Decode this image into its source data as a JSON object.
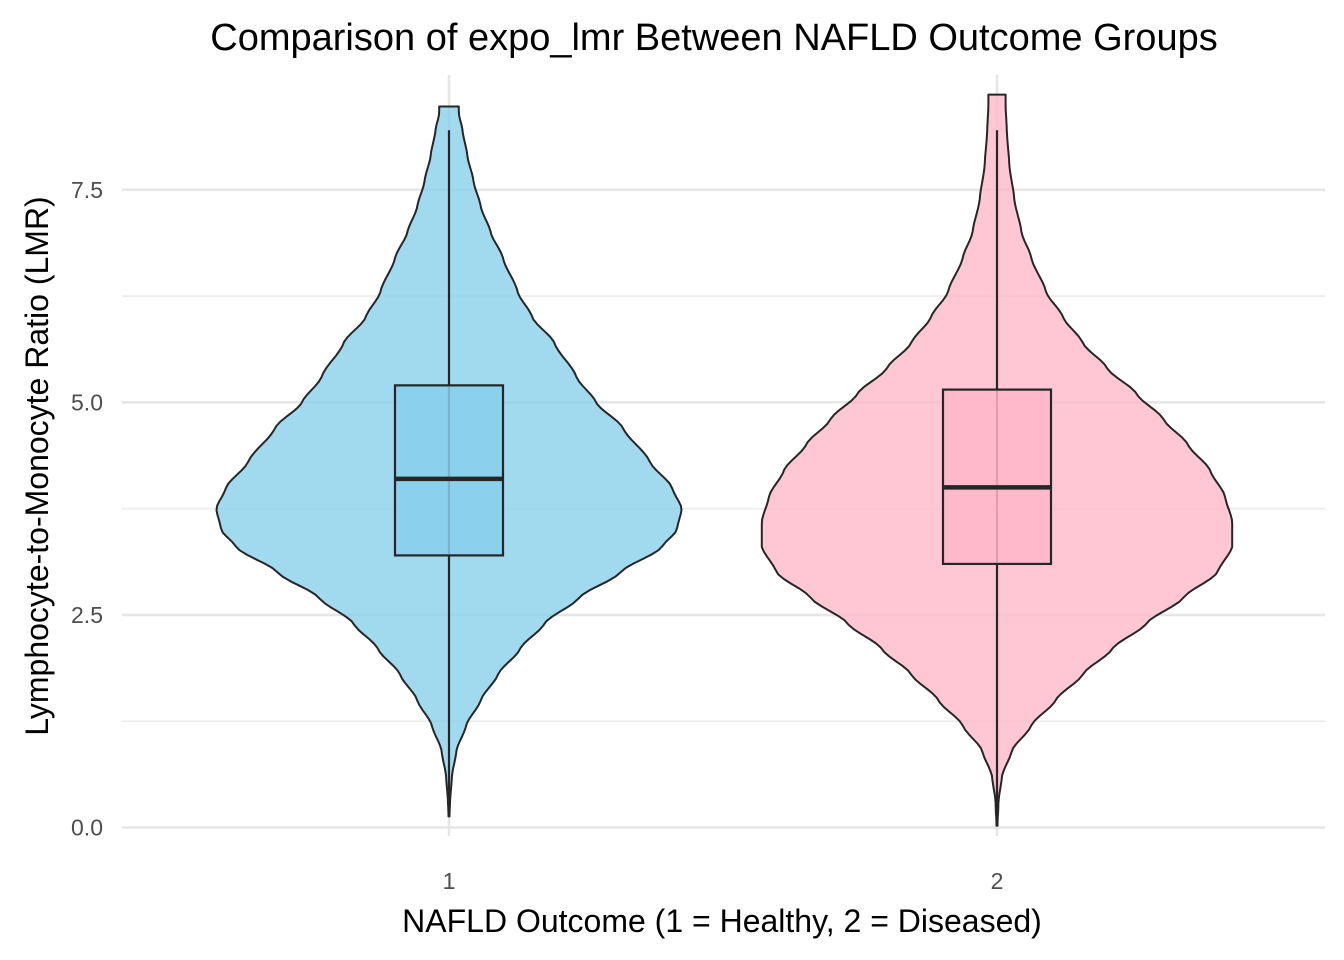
{
  "chart_data": {
    "type": "violin",
    "title": "Comparison of expo_lmr Between NAFLD Outcome Groups",
    "xlabel": "NAFLD Outcome (1 = Healthy, 2 = Diseased)",
    "ylabel": "Lymphocyte-to-Monocyte Ratio (LMR)",
    "categories": [
      "1",
      "2"
    ],
    "ylim": [
      -0.1,
      8.85
    ],
    "yticks": [
      "0.0",
      "2.5",
      "5.0",
      "7.5"
    ],
    "ytick_values": [
      0.0,
      2.5,
      5.0,
      7.5
    ],
    "grid": true,
    "series": [
      {
        "category": "1",
        "color": "#87CEEB",
        "box": {
          "q1": 3.2,
          "median": 4.1,
          "q3": 5.2,
          "whisker_low": 0.15,
          "whisker_high": 8.2
        },
        "y_range": [
          0.13,
          8.48
        ],
        "density_profile": [
          [
            0.13,
            0.002
          ],
          [
            0.3,
            0.004
          ],
          [
            0.6,
            0.012
          ],
          [
            0.9,
            0.03
          ],
          [
            1.2,
            0.07
          ],
          [
            1.5,
            0.13
          ],
          [
            1.8,
            0.2
          ],
          [
            2.1,
            0.29
          ],
          [
            2.4,
            0.39
          ],
          [
            2.7,
            0.53
          ],
          [
            3.0,
            0.7
          ],
          [
            3.3,
            0.87
          ],
          [
            3.5,
            0.93
          ],
          [
            3.75,
            0.95
          ],
          [
            4.0,
            0.91
          ],
          [
            4.3,
            0.82
          ],
          [
            4.7,
            0.71
          ],
          [
            5.0,
            0.6
          ],
          [
            5.3,
            0.52
          ],
          [
            5.7,
            0.43
          ],
          [
            6.0,
            0.34
          ],
          [
            6.3,
            0.28
          ],
          [
            6.7,
            0.22
          ],
          [
            7.0,
            0.17
          ],
          [
            7.3,
            0.13
          ],
          [
            7.6,
            0.1
          ],
          [
            7.9,
            0.075
          ],
          [
            8.2,
            0.055
          ],
          [
            8.4,
            0.04
          ],
          [
            8.48,
            0.04
          ]
        ]
      },
      {
        "category": "2",
        "color": "#FFB6C8",
        "box": {
          "q1": 3.1,
          "median": 4.0,
          "q3": 5.15,
          "whisker_low": 0.05,
          "whisker_high": 8.2
        },
        "y_range": [
          0.02,
          8.62
        ],
        "density_profile": [
          [
            0.02,
            0.002
          ],
          [
            0.3,
            0.006
          ],
          [
            0.6,
            0.02
          ],
          [
            0.9,
            0.06
          ],
          [
            1.2,
            0.14
          ],
          [
            1.5,
            0.24
          ],
          [
            1.8,
            0.35
          ],
          [
            2.1,
            0.47
          ],
          [
            2.4,
            0.61
          ],
          [
            2.7,
            0.76
          ],
          [
            3.0,
            0.9
          ],
          [
            3.3,
            0.96
          ],
          [
            3.6,
            0.96
          ],
          [
            3.9,
            0.93
          ],
          [
            4.2,
            0.87
          ],
          [
            4.5,
            0.78
          ],
          [
            4.8,
            0.68
          ],
          [
            5.1,
            0.57
          ],
          [
            5.4,
            0.45
          ],
          [
            5.7,
            0.35
          ],
          [
            6.0,
            0.27
          ],
          [
            6.3,
            0.2
          ],
          [
            6.7,
            0.14
          ],
          [
            7.0,
            0.1
          ],
          [
            7.4,
            0.07
          ],
          [
            7.8,
            0.05
          ],
          [
            8.2,
            0.04
          ],
          [
            8.5,
            0.035
          ],
          [
            8.62,
            0.035
          ]
        ]
      }
    ]
  }
}
